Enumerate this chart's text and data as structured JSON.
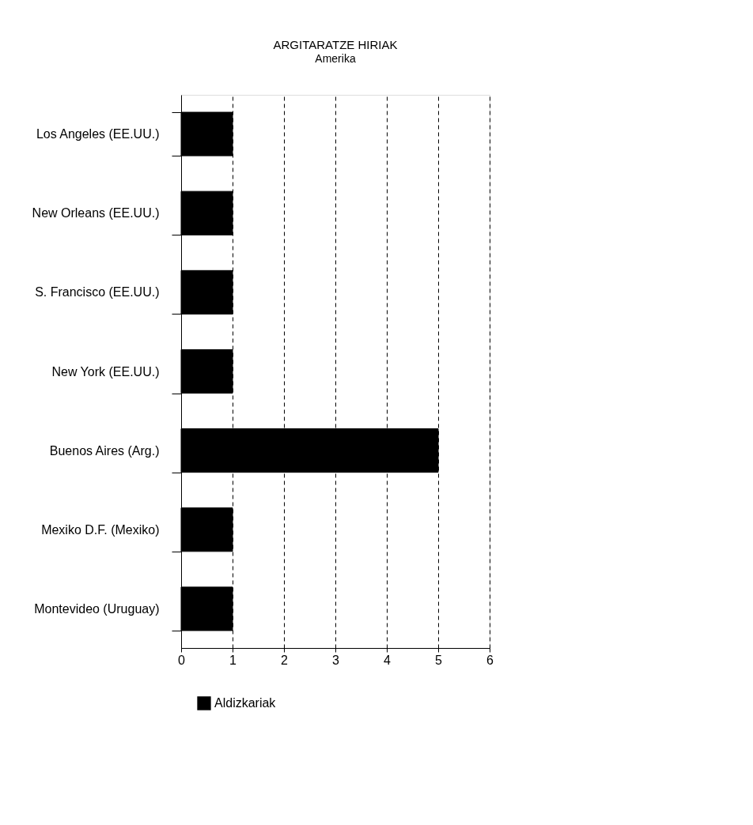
{
  "chart_data": {
    "type": "bar",
    "orientation": "horizontal",
    "title": "ARGITARATZE HIRIAK",
    "subtitle": "Amerika",
    "categories": [
      "Los Angeles (EE.UU.)",
      "New Orleans (EE.UU.)",
      "S. Francisco (EE.UU.)",
      "New York (EE.UU.)",
      "Buenos Aires (Arg.)",
      "Mexiko D.F. (Mexiko)",
      "Montevideo (Uruguay)"
    ],
    "series": [
      {
        "name": "Aldizkariak",
        "color": "#000000",
        "values": [
          1,
          1,
          1,
          1,
          5,
          1,
          1
        ]
      }
    ],
    "xlim": [
      0,
      6
    ],
    "xticks": [
      0,
      1,
      2,
      3,
      4,
      5,
      6
    ],
    "grid": "x",
    "legend": "bottom"
  }
}
